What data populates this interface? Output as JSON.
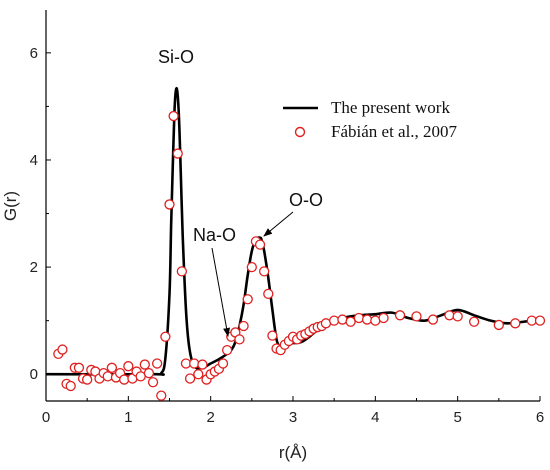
{
  "chart_data": {
    "type": "line",
    "xlabel": "r(Å)",
    "ylabel": "G(r)",
    "xlim": [
      0,
      6
    ],
    "ylim": [
      -0.5,
      6.8
    ],
    "xticks": [
      0,
      1,
      2,
      3,
      4,
      5,
      6
    ],
    "yticks": [
      0,
      2,
      4,
      6
    ],
    "grid": false,
    "legend_position": "top-right",
    "series": [
      {
        "name": "The present work",
        "style": "line",
        "color": "#000000",
        "x": [
          0,
          1.3,
          1.4,
          1.45,
          1.5,
          1.52,
          1.54,
          1.56,
          1.58,
          1.6,
          1.62,
          1.64,
          1.66,
          1.7,
          1.74,
          1.8,
          1.9,
          2.0,
          2.1,
          2.2,
          2.25,
          2.3,
          2.35,
          2.4,
          2.45,
          2.5,
          2.55,
          2.6,
          2.62,
          2.65,
          2.7,
          2.75,
          2.8,
          2.85,
          2.9,
          3.0,
          3.1,
          3.2,
          3.4,
          3.6,
          3.8,
          4.0,
          4.2,
          4.4,
          4.6,
          4.8,
          5.0,
          5.2,
          5.4,
          5.6,
          5.8,
          6.0
        ],
        "y": [
          0,
          0,
          0.02,
          0.3,
          1.5,
          2.8,
          3.9,
          4.9,
          5.32,
          5.2,
          4.6,
          3.6,
          2.6,
          1.2,
          0.5,
          0.15,
          0.12,
          0.2,
          0.28,
          0.38,
          0.45,
          0.6,
          0.9,
          1.3,
          1.85,
          2.3,
          2.52,
          2.55,
          2.5,
          2.3,
          1.8,
          1.2,
          0.65,
          0.5,
          0.55,
          0.58,
          0.6,
          0.7,
          0.95,
          1.05,
          1.1,
          1.12,
          1.15,
          1.05,
          1.0,
          1.1,
          1.2,
          1.1,
          1.0,
          0.95,
          0.98,
          1.02
        ]
      },
      {
        "name": "Fábián et al., 2007",
        "style": "markers",
        "color": "#e02020",
        "x": [
          0.15,
          0.2,
          0.25,
          0.3,
          0.35,
          0.4,
          0.45,
          0.5,
          0.55,
          0.6,
          0.65,
          0.7,
          0.75,
          0.8,
          0.85,
          0.9,
          0.95,
          1.0,
          1.05,
          1.1,
          1.15,
          1.2,
          1.25,
          1.3,
          1.35,
          1.4,
          1.45,
          1.5,
          1.55,
          1.6,
          1.65,
          1.7,
          1.75,
          1.8,
          1.85,
          1.9,
          1.95,
          2.0,
          2.05,
          2.1,
          2.15,
          2.2,
          2.25,
          2.3,
          2.35,
          2.4,
          2.45,
          2.5,
          2.55,
          2.6,
          2.65,
          2.7,
          2.75,
          2.8,
          2.85,
          2.9,
          2.95,
          3.0,
          3.05,
          3.1,
          3.15,
          3.2,
          3.25,
          3.3,
          3.35,
          3.4,
          3.5,
          3.6,
          3.7,
          3.8,
          3.9,
          4.0,
          4.1,
          4.3,
          4.5,
          4.7,
          4.9,
          5.0,
          5.2,
          5.5,
          5.7,
          5.9,
          6.0
        ],
        "y": [
          0.38,
          0.46,
          -0.18,
          -0.22,
          0.12,
          0.12,
          -0.08,
          -0.1,
          0.08,
          0.05,
          -0.08,
          0.02,
          -0.04,
          0.12,
          -0.06,
          0.02,
          -0.1,
          0.15,
          -0.08,
          0.05,
          -0.04,
          0.18,
          0.02,
          -0.15,
          0.2,
          -0.4,
          0.7,
          3.17,
          4.82,
          4.12,
          1.92,
          0.2,
          -0.08,
          0.2,
          0.0,
          0.18,
          -0.1,
          0.0,
          0.05,
          0.1,
          0.2,
          0.45,
          0.7,
          0.78,
          0.65,
          0.9,
          1.4,
          2.0,
          2.48,
          2.42,
          1.92,
          1.5,
          0.72,
          0.48,
          0.45,
          0.55,
          0.62,
          0.7,
          0.65,
          0.72,
          0.75,
          0.8,
          0.85,
          0.88,
          0.9,
          0.95,
          1.0,
          1.02,
          0.98,
          1.05,
          1.02,
          1.0,
          1.05,
          1.1,
          1.08,
          1.02,
          1.1,
          1.08,
          0.98,
          0.92,
          0.95,
          1.0,
          1.0
        ]
      }
    ],
    "annotations": [
      {
        "text": "Si-O",
        "arrow": false
      },
      {
        "text": "Na-O",
        "arrow": true,
        "points_to": [
          2.25,
          0.8
        ]
      },
      {
        "text": "O-O",
        "arrow": true,
        "points_to": [
          2.62,
          2.6
        ]
      }
    ]
  }
}
